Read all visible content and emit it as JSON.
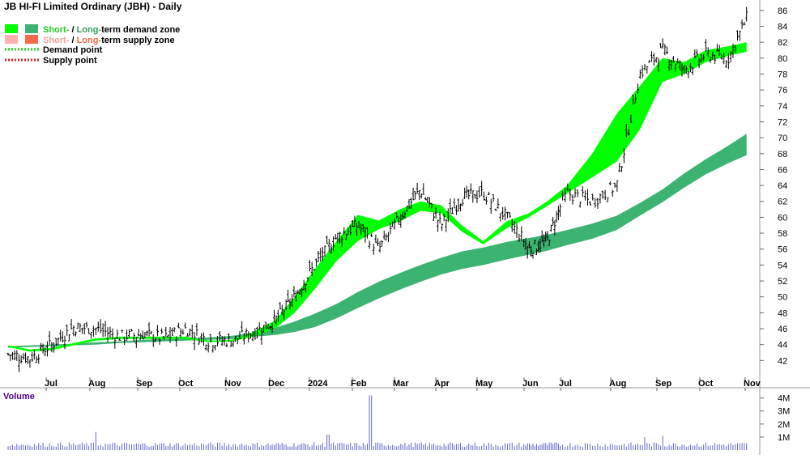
{
  "title": "JB HI-FI Limited Ordinary (JBH) - Daily",
  "legend": {
    "demand_zone": {
      "short": "Short-",
      "sep": " / ",
      "long": "Long-",
      "rest": "term demand zone"
    },
    "supply_zone": {
      "short": "Short-",
      "sep": " / ",
      "long": "Long-",
      "rest": "term supply zone"
    },
    "demand_point": "Demand point",
    "supply_point": "Supply point"
  },
  "colors": {
    "short_demand": "#00ff00",
    "long_demand": "#3cb371",
    "short_supply": "#ffb0b0",
    "long_supply": "#f46a4a",
    "short_demand_text": "#22cc22",
    "long_demand_text": "#2e9b5e",
    "short_supply_text": "#f4a0a0",
    "long_supply_text": "#f46a4a",
    "demand_point": "#22cc22",
    "supply_point": "#dd2222",
    "candle": "#000000",
    "volume": "#6666cc",
    "volume_label": "#4b0082",
    "grid": "#cccccc"
  },
  "volume_panel": {
    "title": "Volume"
  },
  "chart_data": {
    "type": "candlestick",
    "title": "JB HI-FI Limited Ordinary (JBH) - Daily",
    "y_ticks": [
      "86",
      "84",
      "82",
      "80",
      "78",
      "76",
      "74",
      "72",
      "70",
      "68",
      "66",
      "64",
      "62",
      "60",
      "58",
      "56",
      "54",
      "52",
      "50",
      "48",
      "46",
      "44",
      "42"
    ],
    "ylim": [
      40,
      87
    ],
    "x_ticks": [
      "Jul",
      "Aug",
      "Sep",
      "Oct",
      "Nov",
      "Dec",
      "2024",
      "Feb",
      "Mar",
      "Apr",
      "May",
      "Jun",
      "Jul",
      "Aug",
      "Sep",
      "Oct",
      "Nov"
    ],
    "close_path": {
      "x": [
        0,
        0.5,
        1,
        1.5,
        2,
        2.5,
        3,
        3.5,
        4,
        4.5,
        5,
        5.5,
        6,
        6.5,
        7,
        7.5,
        8,
        8.5,
        9,
        9.5,
        10,
        10.5,
        11,
        11.5,
        12,
        12.5,
        13,
        13.5,
        14,
        14.5,
        15,
        15.5,
        16,
        16.5,
        16.9
      ],
      "y": [
        42.8,
        42.3,
        44.0,
        46.2,
        46.0,
        45.0,
        45.3,
        44.8,
        46.0,
        44.5,
        44.5,
        45.5,
        47.0,
        50.0,
        54.0,
        57.5,
        59.0,
        56.0,
        60.0,
        63.5,
        59.0,
        62.5,
        63.0,
        60.0,
        56.0,
        57.0,
        63.0,
        62.0,
        64.0,
        78.0,
        81.0,
        78.5,
        80.5,
        80.0,
        85.0
      ]
    },
    "series": [
      {
        "name": "Short-term demand zone",
        "upper": [
          43.9,
          43.4,
          43.6,
          44.2,
          44.8,
          45.0,
          45.0,
          45.0,
          45.0,
          44.5,
          44.6,
          45.6,
          47.0,
          50.0,
          53.5,
          57.0,
          60.3,
          59.6,
          61.0,
          62.0,
          61.5,
          59.0,
          57.0,
          59.5,
          60.5,
          62.0,
          64.0,
          68.0,
          73.0,
          76.5,
          80.0,
          79.5,
          81.0,
          81.5,
          82.0
        ],
        "lower": [
          43.7,
          43.1,
          43.3,
          43.9,
          44.5,
          44.7,
          44.7,
          44.7,
          44.7,
          44.3,
          44.4,
          45.0,
          46.0,
          48.0,
          51.0,
          54.5,
          57.0,
          58.5,
          59.5,
          60.8,
          60.5,
          58.2,
          56.6,
          58.6,
          60.0,
          61.4,
          63.0,
          65.0,
          67.0,
          71.0,
          77.0,
          78.0,
          79.5,
          80.3,
          80.8
        ]
      },
      {
        "name": "Long-term demand zone",
        "upper": [
          43.8,
          43.9,
          44.0,
          44.1,
          44.3,
          44.4,
          44.6,
          44.7,
          44.8,
          44.9,
          45.1,
          45.5,
          46.1,
          46.9,
          47.9,
          49.1,
          50.6,
          51.9,
          53.0,
          54.0,
          54.9,
          55.7,
          56.2,
          56.9,
          57.4,
          57.8,
          58.4,
          59.2,
          60.2,
          61.8,
          63.5,
          65.5,
          67.3,
          69.0,
          70.5
        ]
      },
      {
        "name": "Long-term demand zone lower",
        "lower": [
          43.6,
          43.7,
          43.8,
          43.9,
          44.0,
          44.2,
          44.3,
          44.4,
          44.5,
          44.6,
          44.7,
          45.0,
          45.2,
          45.6,
          46.2,
          47.3,
          48.6,
          49.8,
          50.9,
          51.9,
          52.8,
          53.5,
          54.0,
          54.7,
          55.3,
          55.8,
          56.5,
          57.3,
          58.4,
          60.2,
          61.9,
          63.7,
          65.4,
          66.8,
          67.8
        ]
      }
    ],
    "volume": {
      "y_ticks": [
        "4M",
        "3M",
        "2M",
        "1M"
      ],
      "spike_x": 8.3,
      "spike_value": 4.2,
      "other_spikes": [
        {
          "x": 2.0,
          "value": 1.4
        },
        {
          "x": 7.3,
          "value": 1.2
        },
        {
          "x": 15.0,
          "value": 1.1
        },
        {
          "x": 14.6,
          "value": 1.0
        }
      ]
    }
  }
}
